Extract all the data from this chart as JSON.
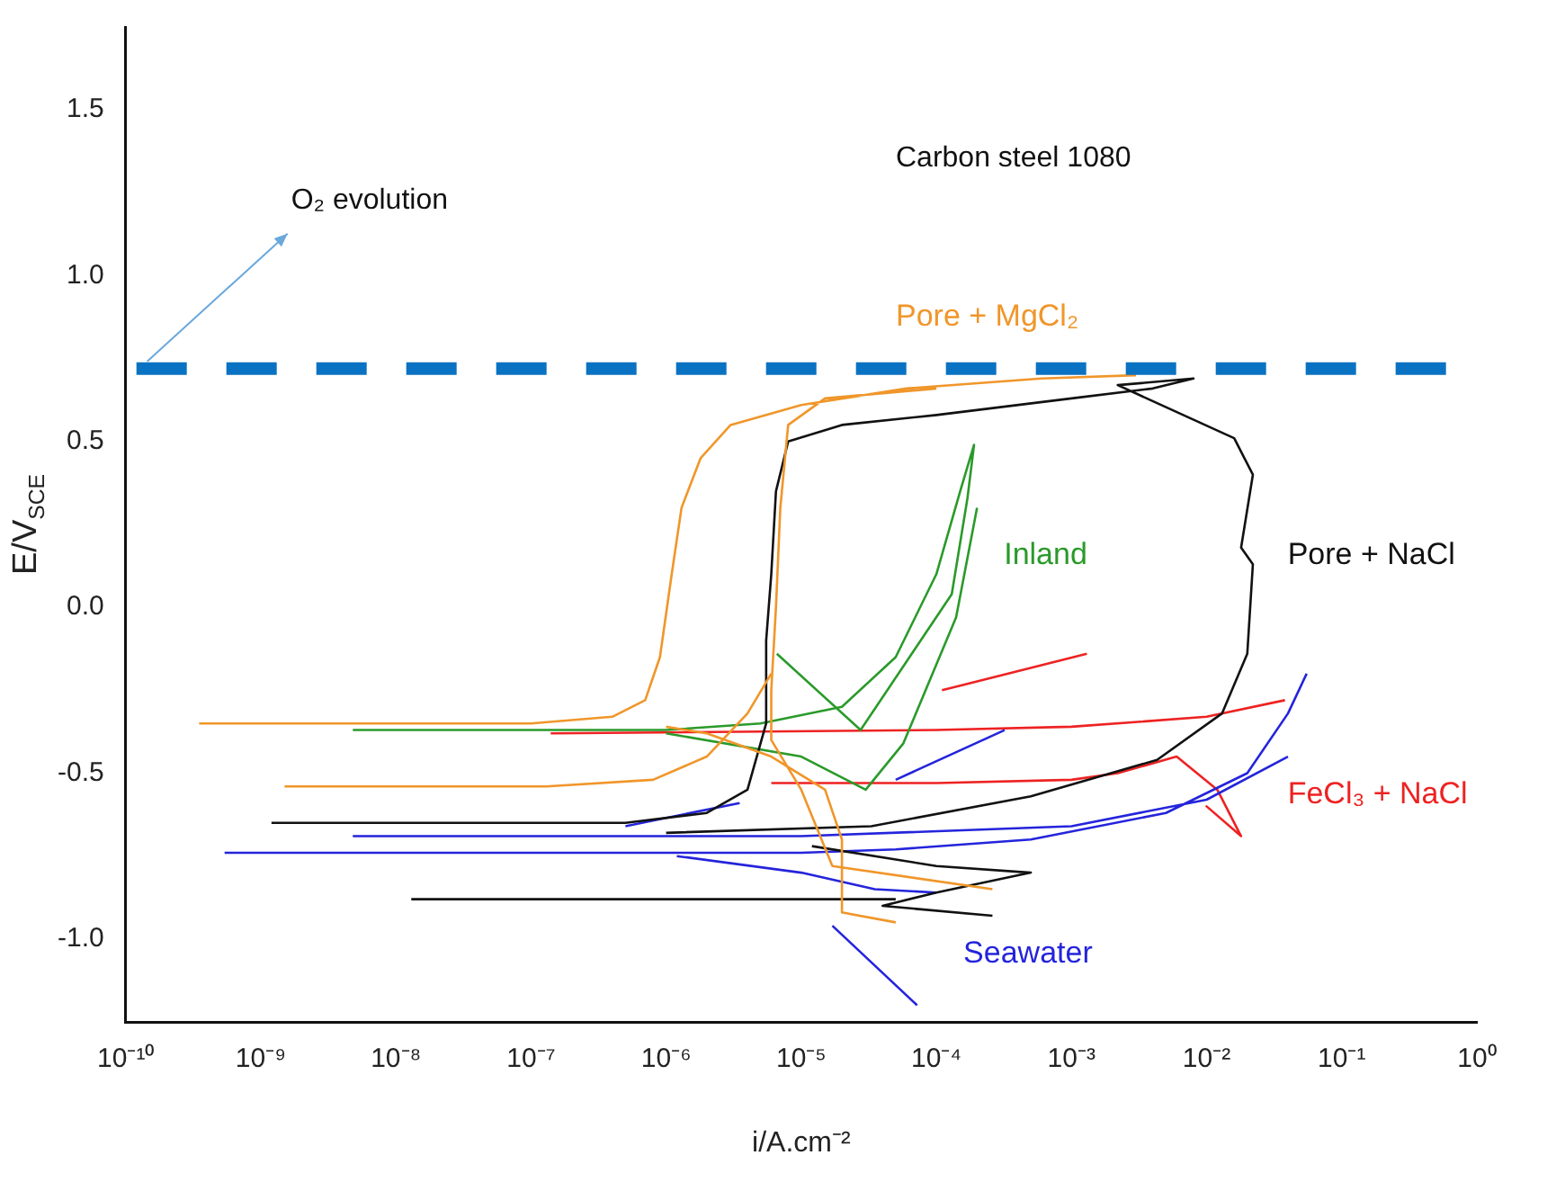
{
  "chart_data": {
    "type": "line",
    "xlabel": "i/A.cm⁻²",
    "ylabel": "E/V$_{SCE}$",
    "annotations": [
      "Carbon steel 1080"
    ],
    "log": "x",
    "grid": false,
    "legend": false,
    "marker": "none",
    "line_style": "solid",
    "xlim": [
      1e-10,
      1
    ],
    "ylim": [
      -1.25,
      1.75
    ],
    "xticks": [
      {
        "value": 1e-10,
        "label": "10⁻¹⁰"
      },
      {
        "value": 1e-09,
        "label": "10⁻⁹"
      },
      {
        "value": 1e-08,
        "label": "10⁻⁸"
      },
      {
        "value": 1e-07,
        "label": "10⁻⁷"
      },
      {
        "value": 1e-06,
        "label": "10⁻⁶"
      },
      {
        "value": 1e-05,
        "label": "10⁻⁵"
      },
      {
        "value": 0.0001,
        "label": "10⁻⁴"
      },
      {
        "value": 0.001,
        "label": "10⁻³"
      },
      {
        "value": 0.01,
        "label": "10⁻²"
      },
      {
        "value": 0.1,
        "label": "10⁻¹"
      },
      {
        "value": 1,
        "label": "10⁰"
      }
    ],
    "yticks": [
      {
        "value": -1,
        "label": "-1.0"
      },
      -0.5,
      {
        "value": 0,
        "label": "0.0"
      },
      0.5,
      {
        "value": 1,
        "label": "1.0"
      },
      1.5
    ],
    "ref_lines": [
      {
        "axis": "y",
        "value": 0.72,
        "label": "O₂ evolution",
        "color": "#0a72c2",
        "line_style": "dashed"
      }
    ],
    "series": [
      {
        "name": "Pore + MgCl₂",
        "color": "#f0962a",
        "x": [
          3.5e-10,
          1e-07,
          4e-07,
          7e-07,
          9e-07,
          1.1e-06,
          1.3e-06,
          1.8e-06,
          3e-06,
          1e-05,
          6e-05,
          0.0006,
          0.003,
          null,
          0.0001,
          1.5e-05,
          8e-06,
          7e-06,
          6.5e-06,
          6e-06,
          6e-06,
          1e-05,
          1.7e-05,
          0.00026,
          null,
          1.5e-09,
          1.3e-07,
          8e-07,
          2e-06,
          4e-06,
          6e-06,
          null,
          1e-06,
          2e-06,
          6e-06,
          1.5e-05,
          2e-05,
          2e-05,
          5e-05
        ],
        "values": [
          -0.35,
          -0.35,
          -0.33,
          -0.28,
          -0.15,
          0.1,
          0.3,
          0.45,
          0.55,
          0.61,
          0.66,
          0.69,
          0.7,
          null,
          0.66,
          0.63,
          0.55,
          0.3,
          0,
          -0.25,
          -0.4,
          -0.55,
          -0.78,
          -0.85,
          null,
          -0.54,
          -0.54,
          -0.52,
          -0.45,
          -0.32,
          -0.2,
          null,
          -0.36,
          -0.38,
          -0.45,
          -0.55,
          -0.7,
          -0.92,
          -0.95
        ]
      },
      {
        "name": "Pore + NaCl",
        "color": "#111111",
        "x": [
          1.2e-09,
          5e-07,
          2e-06,
          4e-06,
          5.5e-06,
          5.5e-06,
          6e-06,
          6.5e-06,
          8e-06,
          2e-05,
          0.0001,
          0.001,
          0.004,
          0.008,
          0.0022,
          0.016,
          0.022,
          0.018,
          0.022,
          0.02,
          0.013,
          0.0043,
          0.0005,
          3.3e-05,
          1e-06,
          null,
          1.2e-05,
          0.0001,
          0.0005,
          0.0001,
          4e-05,
          0.00026,
          null,
          1.3e-08,
          5e-05
        ],
        "values": [
          -0.65,
          -0.65,
          -0.62,
          -0.55,
          -0.35,
          -0.1,
          0.1,
          0.35,
          0.5,
          0.55,
          0.58,
          0.63,
          0.66,
          0.69,
          0.67,
          0.51,
          0.4,
          0.18,
          0.13,
          -0.14,
          -0.32,
          -0.46,
          -0.57,
          -0.66,
          -0.68,
          null,
          -0.72,
          -0.78,
          -0.8,
          -0.86,
          -0.9,
          -0.93,
          null,
          -0.88,
          -0.88
        ]
      },
      {
        "name": "Inland",
        "color": "#2a9a2a",
        "x": [
          4.8e-09,
          1e-06,
          5e-06,
          2e-05,
          5e-05,
          0.0001,
          0.00015,
          0.00019,
          0.00017,
          0.00013,
          2.75e-05,
          6.6e-06,
          null,
          1e-06,
          1e-05,
          3e-05,
          5.7e-05,
          0.00014,
          0.0002
        ],
        "values": [
          -0.37,
          -0.37,
          -0.35,
          -0.3,
          -0.15,
          0.1,
          0.35,
          0.49,
          0.33,
          0.04,
          -0.37,
          -0.14,
          null,
          -0.38,
          -0.45,
          -0.55,
          -0.41,
          -0.03,
          0.3
        ]
      },
      {
        "name": "Seawater",
        "color": "#2424dc",
        "x": [
          5.4e-10,
          1e-06,
          1e-05,
          5e-05,
          0.0005,
          0.005,
          0.02,
          0.04,
          0.055,
          null,
          4.8e-09,
          1e-05,
          0.001,
          0.01,
          0.04,
          null,
          1.2e-06,
          1e-05,
          3.5e-05,
          0.0001,
          null,
          5e-07,
          3.5e-06,
          null,
          7.2e-05,
          1.7e-05,
          null,
          0.00032,
          5e-05
        ],
        "values": [
          -0.74,
          -0.74,
          -0.74,
          -0.73,
          -0.7,
          -0.62,
          -0.5,
          -0.32,
          -0.2,
          null,
          -0.69,
          -0.69,
          -0.66,
          -0.58,
          -0.45,
          null,
          -0.75,
          -0.8,
          -0.85,
          -0.86,
          null,
          -0.66,
          -0.59,
          null,
          -1.2,
          -0.96,
          null,
          -0.37,
          -0.52
        ]
      },
      {
        "name": "FeCl₃ + NaCl",
        "color": "#ee2222",
        "x": [
          1.4e-07,
          0.0001,
          0.001,
          0.01,
          0.038,
          null,
          6e-06,
          0.0001,
          0.001,
          0.0022,
          0.006,
          0.012,
          0.018,
          0.01,
          0.018,
          null,
          0.0013,
          0.00011
        ],
        "values": [
          -0.38,
          -0.37,
          -0.36,
          -0.33,
          -0.28,
          null,
          -0.53,
          -0.53,
          -0.52,
          -0.5,
          -0.45,
          -0.55,
          -0.69,
          -0.6,
          -0.69,
          null,
          -0.14,
          -0.25
        ]
      }
    ]
  }
}
